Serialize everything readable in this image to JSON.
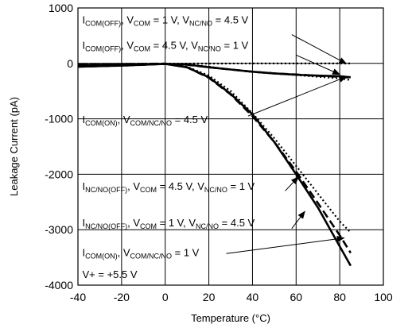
{
  "chart_data": {
    "type": "line",
    "xlabel": "Temperature (°C)",
    "ylabel": "Leakage Current (pA)",
    "xlim": [
      -40,
      100
    ],
    "ylim": [
      -4000,
      1000
    ],
    "xticks": [
      -40,
      -20,
      0,
      20,
      40,
      60,
      80,
      100
    ],
    "yticks": [
      1000,
      0,
      -1000,
      -2000,
      -3000,
      -4000
    ],
    "xtick_labels": [
      "-40",
      "-20",
      "0",
      "20",
      "40",
      "60",
      "80",
      "100"
    ],
    "ytick_labels": [
      "1000",
      "0",
      "-1000",
      "-2000",
      "-3000",
      "-4000"
    ],
    "grid": true,
    "series": [
      {
        "id": "com_off_vcom1",
        "style": "dotted",
        "x": [
          -40,
          -20,
          0,
          20,
          40,
          60,
          80,
          85
        ],
        "y": [
          -10,
          -8,
          -5,
          -3,
          -2,
          -2,
          -2,
          -2
        ]
      },
      {
        "id": "com_off_vcom45",
        "style": "dotted",
        "x": [
          -40,
          -20,
          0,
          10,
          20,
          30,
          40,
          50,
          60,
          70,
          80,
          85
        ],
        "y": [
          -60,
          -40,
          -5,
          -20,
          -60,
          -110,
          -150,
          -180,
          -210,
          -240,
          -270,
          -300
        ]
      },
      {
        "id": "com_on_45",
        "style": "dashed",
        "x": [
          -40,
          -20,
          0,
          10,
          20,
          30,
          40,
          50,
          60,
          70,
          80,
          85
        ],
        "y": [
          -60,
          -40,
          -10,
          -25,
          -70,
          -110,
          -150,
          -180,
          -200,
          -225,
          -240,
          -260
        ]
      },
      {
        "id": "nc_off_vcom45",
        "style": "dotted",
        "x": [
          -40,
          -20,
          0,
          10,
          20,
          30,
          40,
          50,
          60,
          70,
          80,
          85
        ],
        "y": [
          -20,
          -15,
          -5,
          -60,
          -220,
          -500,
          -900,
          -1350,
          -1850,
          -2350,
          -2850,
          -3050
        ]
      },
      {
        "id": "nc_off_vcom1",
        "style": "dashed",
        "x": [
          -40,
          -20,
          0,
          10,
          20,
          30,
          40,
          50,
          60,
          70,
          80,
          85
        ],
        "y": [
          -20,
          -15,
          -5,
          -70,
          -260,
          -560,
          -950,
          -1420,
          -1950,
          -2520,
          -3100,
          -3420
        ]
      },
      {
        "id": "com_on_1",
        "style": "solid",
        "x": [
          -40,
          -20,
          0,
          10,
          20,
          30,
          40,
          50,
          60,
          70,
          80,
          85
        ],
        "y": [
          -30,
          -20,
          -10,
          -70,
          -250,
          -550,
          -920,
          -1420,
          -2000,
          -2600,
          -3300,
          -3650
        ]
      },
      {
        "id": "com_off_vcom1_solid",
        "style": "solid",
        "x": [
          -40,
          -20,
          0,
          10,
          20,
          30,
          40,
          50,
          60,
          70,
          80,
          85
        ],
        "y": [
          -60,
          -40,
          -10,
          -20,
          -70,
          -110,
          -150,
          -180,
          -205,
          -220,
          -230,
          -250
        ]
      }
    ],
    "annotations": [
      {
        "id": "a1",
        "text": [
          [
            "I",
            ""
          ],
          [
            "COM(OFF)",
            "sub"
          ],
          [
            ", V",
            ""
          ],
          [
            "COM",
            "sub"
          ],
          [
            " = 1 V, V",
            ""
          ],
          [
            "NC/NO",
            "sub"
          ],
          [
            " = 4.5 V",
            ""
          ]
        ],
        "x": -38,
        "y": 720
      },
      {
        "id": "a2",
        "text": [
          [
            "I",
            ""
          ],
          [
            "COM(OFF)",
            "sub"
          ],
          [
            ", V",
            ""
          ],
          [
            "COM",
            "sub"
          ],
          [
            " = 4.5 V, V",
            ""
          ],
          [
            "NC/NO",
            "sub"
          ],
          [
            " = 1 V",
            ""
          ]
        ],
        "x": -38,
        "y": 260
      },
      {
        "id": "a3",
        "text": [
          [
            "I",
            ""
          ],
          [
            "COM(ON)",
            "sub"
          ],
          [
            ", V",
            ""
          ],
          [
            "COM/NC/NO",
            "sub"
          ],
          [
            " = 4.5 V",
            ""
          ]
        ],
        "x": -38,
        "y": -1080
      },
      {
        "id": "a4",
        "text": [
          [
            "I",
            ""
          ],
          [
            "NC/NO(OFF)",
            "sub"
          ],
          [
            ", V",
            ""
          ],
          [
            "COM",
            "sub"
          ],
          [
            " = 4.5 V, V",
            ""
          ],
          [
            "NC/NO",
            "sub"
          ],
          [
            " = 1 V",
            ""
          ]
        ],
        "x": -38,
        "y": -2280
      },
      {
        "id": "a5",
        "text": [
          [
            "I",
            ""
          ],
          [
            "NC/NO(OFF)",
            "sub"
          ],
          [
            ", V",
            ""
          ],
          [
            "COM",
            "sub"
          ],
          [
            " = 1 V, V",
            ""
          ],
          [
            "NC/NO",
            "sub"
          ],
          [
            " = 4.5 V",
            ""
          ]
        ],
        "x": -38,
        "y": -2940
      },
      {
        "id": "a6",
        "text": [
          [
            "I",
            ""
          ],
          [
            "COM(ON)",
            "sub"
          ],
          [
            ", V",
            ""
          ],
          [
            "COM/NC/NO",
            "sub"
          ],
          [
            " = 1 V",
            ""
          ]
        ],
        "x": -38,
        "y": -3480
      },
      {
        "id": "a7",
        "text": [
          [
            "V+ = +5.5 V",
            ""
          ]
        ],
        "x": -38,
        "y": -3870
      }
    ],
    "arrows": [
      {
        "id": "arr1",
        "from": [
          58,
          520
        ],
        "to": [
          83,
          -5
        ]
      },
      {
        "id": "arr2",
        "from": [
          60,
          150
        ],
        "to": [
          80,
          -200
        ]
      },
      {
        "id": "arr3",
        "from": [
          38,
          -950
        ],
        "to": [
          83,
          -240
        ]
      },
      {
        "id": "arr4",
        "from": [
          55,
          -2300
        ],
        "to": [
          61,
          -2050
        ]
      },
      {
        "id": "arr5",
        "from": [
          58,
          -2980
        ],
        "to": [
          64,
          -2670
        ]
      },
      {
        "id": "arr6",
        "from": [
          28,
          -3430
        ],
        "to": [
          82,
          -3150
        ]
      }
    ]
  }
}
